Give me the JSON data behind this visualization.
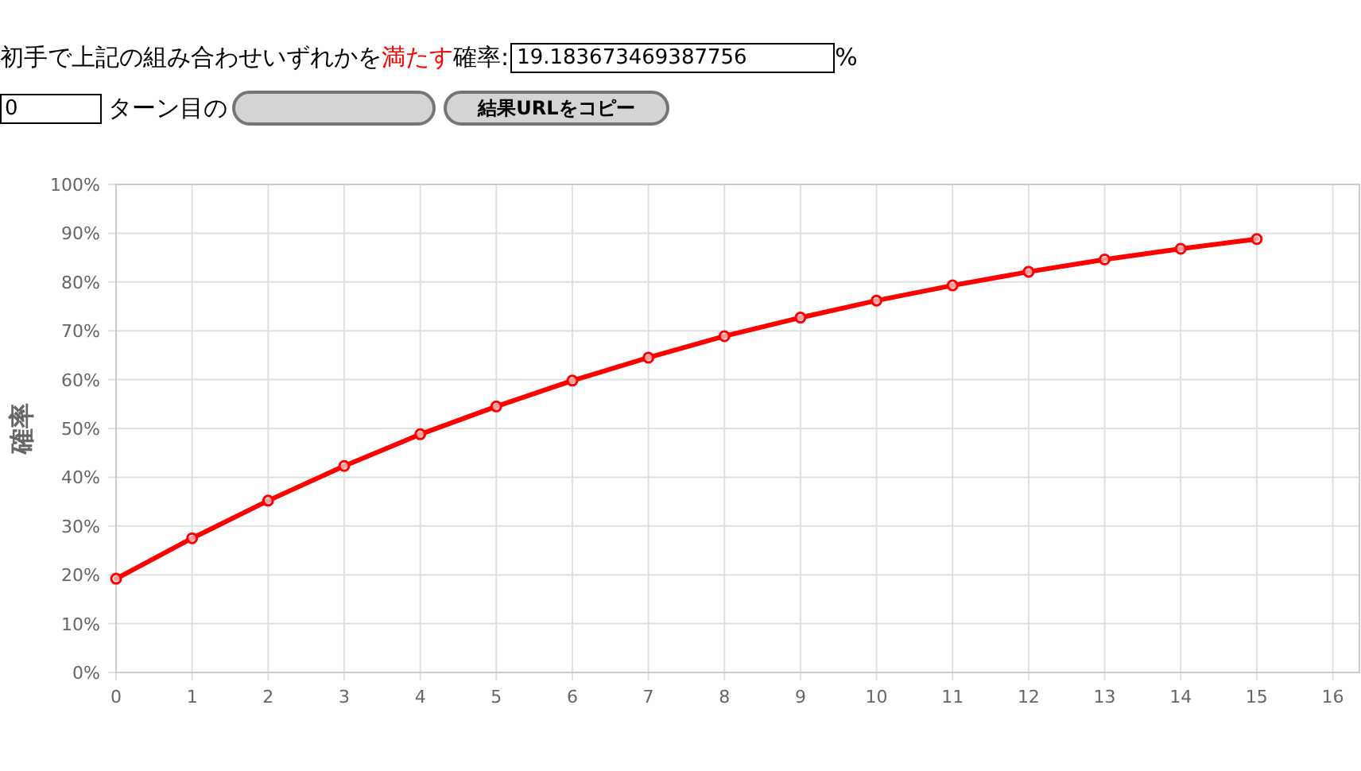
{
  "chart_data": {
    "type": "line",
    "ylabel": "確率",
    "annotations": [
      "初手で上記の組み合わせいずれかを",
      "満たす",
      "確率:",
      "19.183673469387756",
      "%",
      "0",
      "ターン目の",
      "結果URLをコピー"
    ],
    "x": [
      0,
      1,
      2,
      3,
      4,
      5,
      6,
      7,
      8,
      9,
      10,
      11,
      12,
      13,
      14,
      15
    ],
    "series": [
      {
        "color": "#ff0000",
        "values": [
          19.2,
          27.5,
          35.2,
          42.3,
          48.8,
          54.5,
          59.8,
          64.5,
          68.9,
          72.7,
          76.2,
          79.3,
          82.1,
          84.6,
          86.8,
          88.8
        ]
      }
    ],
    "xlim": [
      0,
      16.35
    ],
    "xticks": [
      0,
      1,
      2,
      3,
      4,
      5,
      6,
      7,
      8,
      9,
      10,
      11,
      12,
      13,
      14,
      15,
      16
    ],
    "ylim": [
      0,
      100
    ],
    "yticks": [
      {
        "value": 0,
        "label": "0%"
      },
      {
        "value": 10,
        "label": "10%"
      },
      {
        "value": 20,
        "label": "20%"
      },
      {
        "value": 30,
        "label": "30%"
      },
      {
        "value": 40,
        "label": "40%"
      },
      {
        "value": 50,
        "label": "50%"
      },
      {
        "value": 60,
        "label": "60%"
      },
      {
        "value": 70,
        "label": "70%"
      },
      {
        "value": 80,
        "label": "80%"
      },
      {
        "value": 90,
        "label": "90%"
      },
      {
        "value": 100,
        "label": "100%"
      }
    ],
    "grid": true,
    "marker": "circle",
    "line_style": "solid"
  }
}
